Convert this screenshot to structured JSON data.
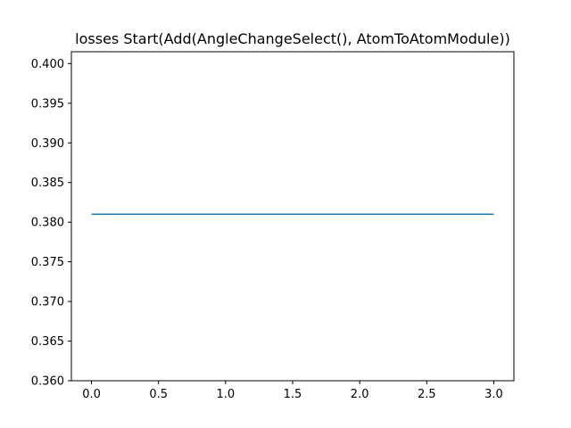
{
  "chart_data": {
    "type": "line",
    "title": "losses Start(Add(AngleChangeSelect(), AtomToAtomModule))",
    "xlabel": "",
    "ylabel": "",
    "xlim": [
      -0.15,
      3.15
    ],
    "ylim": [
      0.36,
      0.4015
    ],
    "xticks": [
      0.0,
      0.5,
      1.0,
      1.5,
      2.0,
      2.5,
      3.0
    ],
    "xtick_labels": [
      "0.0",
      "0.5",
      "1.0",
      "1.5",
      "2.0",
      "2.5",
      "3.0"
    ],
    "yticks": [
      0.36,
      0.365,
      0.37,
      0.375,
      0.38,
      0.385,
      0.39,
      0.395,
      0.4
    ],
    "ytick_labels": [
      "0.360",
      "0.365",
      "0.370",
      "0.375",
      "0.380",
      "0.385",
      "0.390",
      "0.395",
      "0.400"
    ],
    "grid": false,
    "series": [
      {
        "x": [
          0,
          1,
          2,
          3
        ],
        "values": [
          0.381,
          0.381,
          0.381,
          0.381
        ],
        "color": "#1f77b4"
      }
    ]
  }
}
